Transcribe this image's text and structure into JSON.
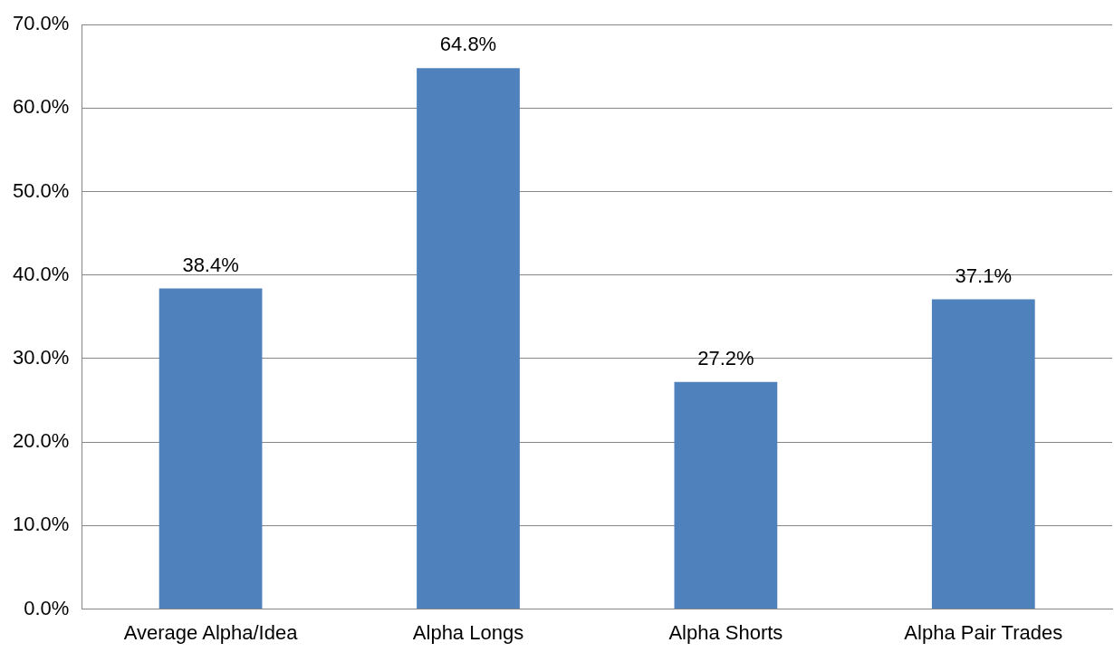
{
  "chart_data": {
    "type": "bar",
    "categories": [
      "Average Alpha/Idea",
      "Alpha Longs",
      "Alpha Shorts",
      "Alpha Pair Trades"
    ],
    "values": [
      38.4,
      64.8,
      27.2,
      37.1
    ],
    "value_labels": [
      "38.4%",
      "64.8%",
      "27.2%",
      "37.1%"
    ],
    "color": "#4f81bd",
    "ylim": [
      0,
      70
    ],
    "yticks": [
      {
        "value": 0,
        "label": "0.0%"
      },
      {
        "value": 10,
        "label": "10.0%"
      },
      {
        "value": 20,
        "label": "20.0%"
      },
      {
        "value": 30,
        "label": "30.0%"
      },
      {
        "value": 40,
        "label": "40.0%"
      },
      {
        "value": 50,
        "label": "50.0%"
      },
      {
        "value": 60,
        "label": "60.0%"
      },
      {
        "value": 70,
        "label": "70.0%"
      }
    ],
    "grid": "y"
  }
}
